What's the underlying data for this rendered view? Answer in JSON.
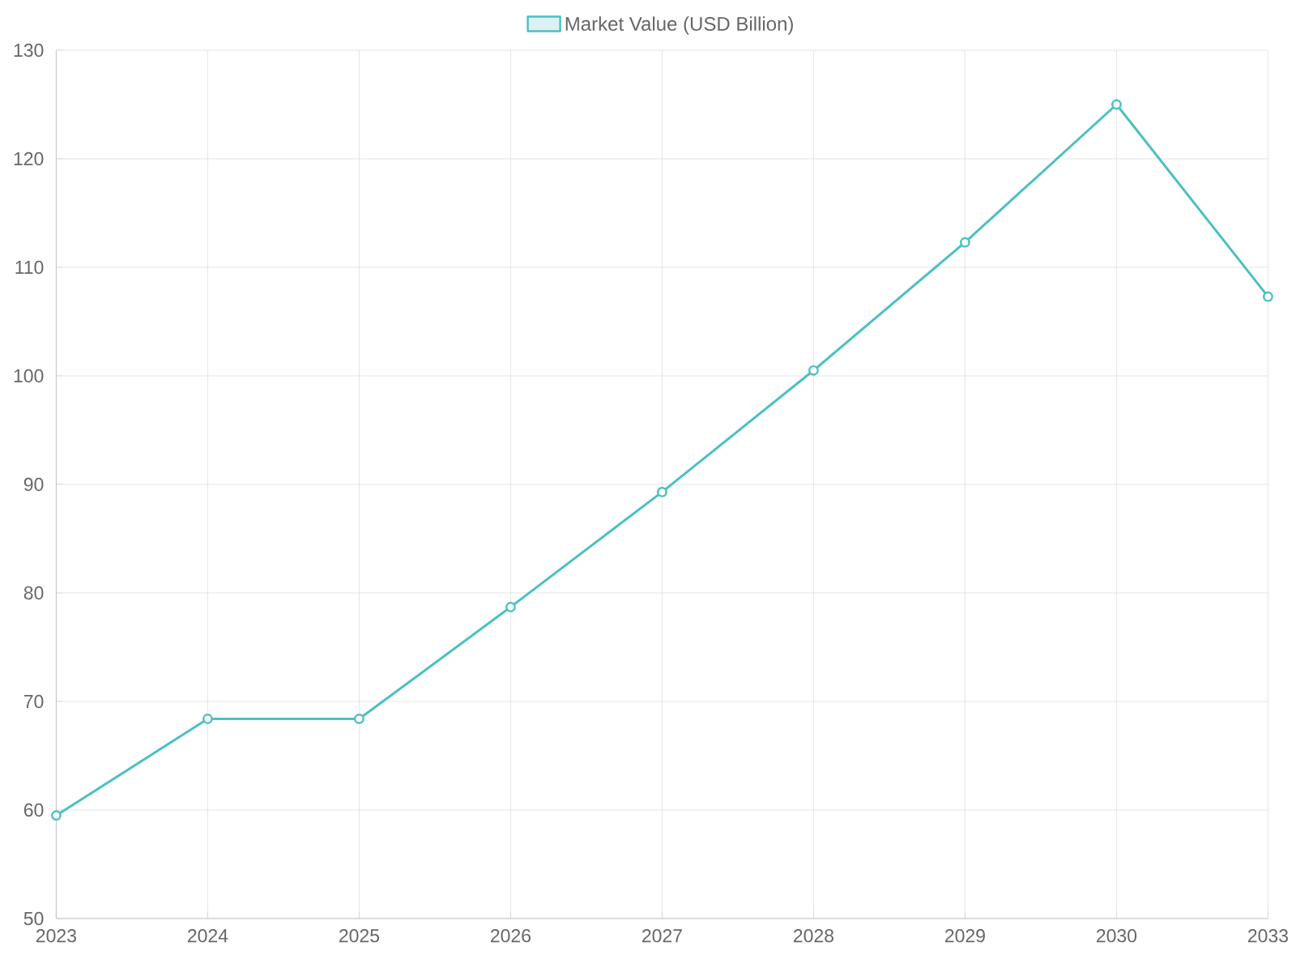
{
  "chart_data": {
    "type": "line",
    "categories": [
      "2023",
      "2024",
      "2025",
      "2026",
      "2027",
      "2028",
      "2029",
      "2030",
      "2033"
    ],
    "series": [
      {
        "name": "Market Value (USD Billion)",
        "color": "#4bc0c0",
        "values": [
          59.5,
          68.4,
          68.4,
          78.7,
          89.3,
          100.5,
          112.3,
          125.0,
          107.3
        ]
      }
    ],
    "ylim": [
      50,
      130
    ],
    "yticks": [
      50,
      60,
      70,
      80,
      90,
      100,
      110,
      120,
      130
    ],
    "grid": true,
    "legend": "top",
    "marker": "circle",
    "line_style": "solid"
  }
}
